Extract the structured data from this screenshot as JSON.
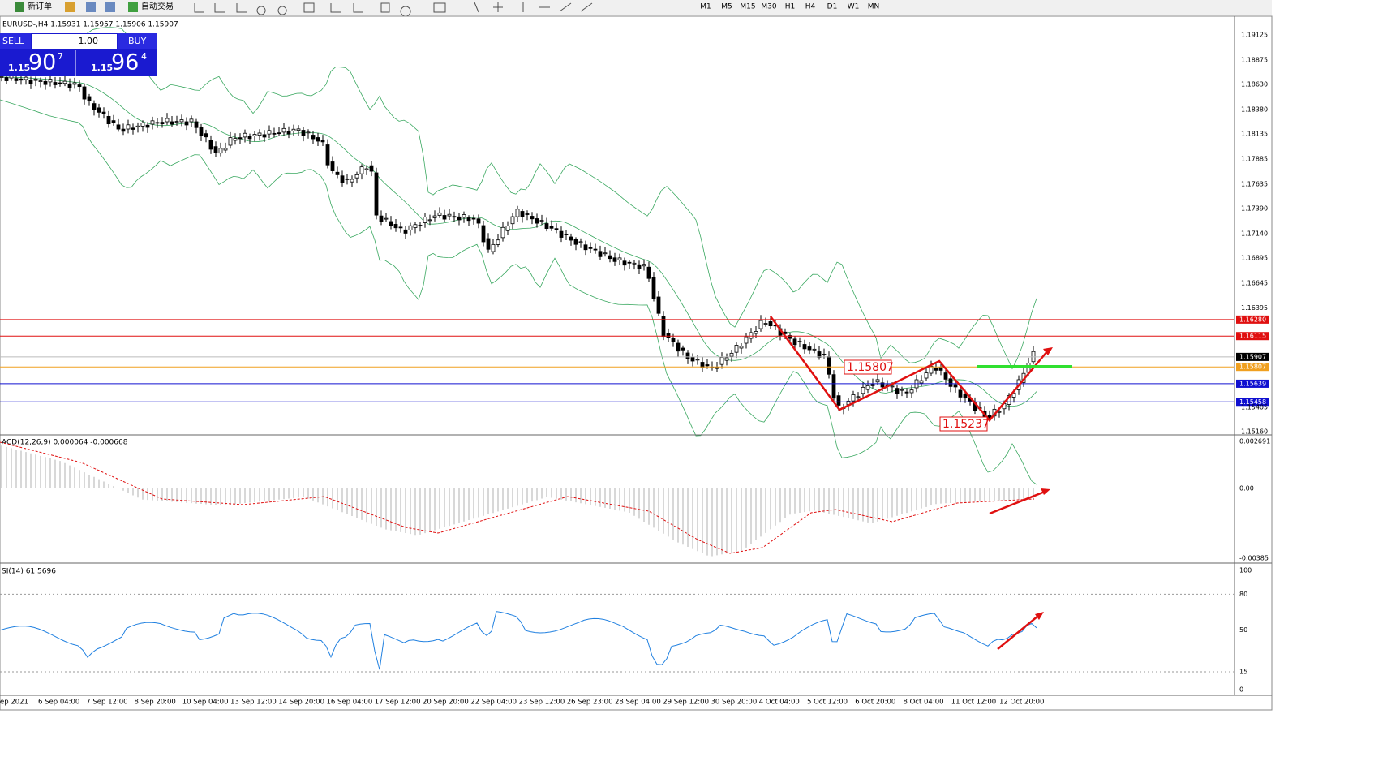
{
  "toolbar": {
    "new_order": "新订单",
    "auto_trading": "自动交易",
    "timeframes": [
      "M1",
      "M5",
      "M15",
      "M30",
      "H1",
      "H4",
      "D1",
      "W1",
      "MN"
    ]
  },
  "chart": {
    "header": "EURUSD-,H4  1.15931 1.15957 1.15906 1.15907",
    "price_axis": [
      "1.19125",
      "1.18875",
      "1.18630",
      "1.18380",
      "1.18135",
      "1.17885",
      "1.17635",
      "1.17390",
      "1.17140",
      "1.16895",
      "1.16645",
      "1.16395",
      "1.15405",
      "1.15160"
    ],
    "price_levels": [
      {
        "label": "1.16280",
        "color": "#e01010"
      },
      {
        "label": "1.16115",
        "color": "#e01010"
      },
      {
        "label": "1.15907",
        "color": "#000000"
      },
      {
        "label": "1.15807",
        "color": "#f0a020"
      },
      {
        "label": "1.15639",
        "color": "#1010d0"
      },
      {
        "label": "1.15458",
        "color": "#1010d0"
      }
    ],
    "annotations": [
      "1.15807",
      "1.15237"
    ]
  },
  "trade_panel": {
    "sell": "SELL",
    "buy": "BUY",
    "lots": "1.00",
    "bid_big": "1.15",
    "bid_pips": "90",
    "bid_point": "7",
    "ask_big": "1.15",
    "ask_pips": "96",
    "ask_point": "4"
  },
  "macd": {
    "header": "ACD(12,26,9) 0.000064 -0.000668",
    "axis": [
      "0.002691",
      "0.00",
      "-0.00385"
    ]
  },
  "rsi": {
    "header": "SI(14) 61.5696",
    "axis": [
      "100",
      "80",
      "50",
      "15",
      "0"
    ]
  },
  "time_axis": [
    "ep 2021",
    "6 Sep 04:00",
    "7 Sep 12:00",
    "8 Sep 20:00",
    "10 Sep 04:00",
    "13 Sep 12:00",
    "14 Sep 20:00",
    "16 Sep 04:00",
    "17 Sep 12:00",
    "20 Sep 20:00",
    "22 Sep 04:00",
    "23 Sep 12:00",
    "26 Sep 23:00",
    "28 Sep 04:00",
    "29 Sep 12:00",
    "30 Sep 20:00",
    "4 Oct 04:00",
    "5 Oct 12:00",
    "6 Oct 20:00",
    "8 Oct 04:00",
    "11 Oct 12:00",
    "12 Oct 20:00"
  ]
}
